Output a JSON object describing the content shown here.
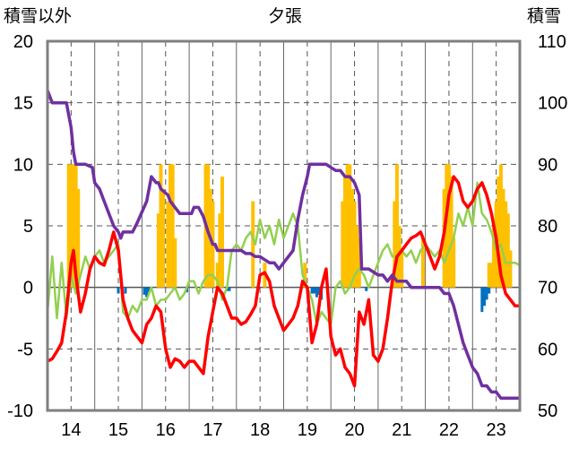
{
  "chart_data": {
    "type": "line+bar",
    "title": "夕張",
    "ylabel_left": "積雪以外",
    "ylabel_right": "積雪",
    "ylim_left": [
      -10,
      20
    ],
    "ylim_right": [
      50,
      110
    ],
    "yticks_left": [
      "20",
      "15",
      "10",
      "5",
      "0",
      "-5",
      "-10"
    ],
    "yticks_right": [
      "110",
      "100",
      "90",
      "80",
      "70",
      "60",
      "50"
    ],
    "xlim": [
      13.5,
      23.5
    ],
    "xticks": [
      "14",
      "15",
      "16",
      "17",
      "18",
      "19",
      "20",
      "21",
      "22",
      "23"
    ],
    "grid": "dashed",
    "colors": {
      "red_line": "#ff0000",
      "green_line": "#92d050",
      "purple_line": "#7030a0",
      "orange_bars": "#ffc000",
      "blue_bars": "#0070c0"
    },
    "red_series": {
      "axis": "left",
      "x": [
        13.5,
        13.6,
        13.7,
        13.8,
        13.9,
        14.0,
        14.05,
        14.1,
        14.2,
        14.3,
        14.4,
        14.5,
        14.6,
        14.7,
        14.8,
        14.9,
        15.0,
        15.1,
        15.2,
        15.3,
        15.4,
        15.5,
        15.6,
        15.7,
        15.8,
        15.9,
        16.0,
        16.1,
        16.2,
        16.3,
        16.4,
        16.5,
        16.6,
        16.7,
        16.8,
        16.9,
        17.0,
        17.1,
        17.2,
        17.3,
        17.4,
        17.5,
        17.6,
        17.7,
        17.8,
        17.9,
        18.0,
        18.1,
        18.2,
        18.3,
        18.4,
        18.5,
        18.6,
        18.7,
        18.8,
        18.9,
        19.0,
        19.1,
        19.2,
        19.3,
        19.4,
        19.5,
        19.6,
        19.7,
        19.8,
        19.9,
        20.0,
        20.1,
        20.2,
        20.3,
        20.4,
        20.5,
        20.6,
        20.7,
        20.8,
        20.9,
        21.0,
        21.1,
        21.2,
        21.3,
        21.4,
        21.5,
        21.6,
        21.7,
        21.8,
        21.9,
        22.0,
        22.1,
        22.2,
        22.3,
        22.4,
        22.5,
        22.6,
        22.7,
        22.8,
        22.9,
        23.0,
        23.1,
        23.2,
        23.3,
        23.4,
        23.5
      ],
      "values": [
        -6,
        -5.8,
        -5.2,
        -4.5,
        -2,
        2,
        3,
        1,
        -2,
        -0.5,
        1.5,
        2.5,
        2,
        1.8,
        3,
        4.5,
        3,
        -1,
        -2.5,
        -3.5,
        -4,
        -4.5,
        -3,
        -2.5,
        -1.5,
        -2,
        -5,
        -6.5,
        -5.8,
        -6,
        -6.5,
        -6,
        -6,
        -6.5,
        -7,
        -4,
        -2,
        0,
        -0.5,
        -1.5,
        -2.5,
        -2.5,
        -3,
        -2.8,
        -2.2,
        -1.5,
        1,
        1.2,
        0.5,
        -1.5,
        -2.5,
        -3.5,
        -3,
        -2.5,
        -1.5,
        0.5,
        0,
        -4.5,
        -3,
        0,
        1.5,
        -4,
        -5.5,
        -5,
        -6.5,
        -7,
        -8,
        -2,
        -3,
        -1,
        -5.5,
        -6,
        -5,
        -2.5,
        0.5,
        2.5,
        3,
        3.5,
        4,
        4.2,
        4.5,
        3.5,
        2.5,
        1.5,
        2.5,
        4.5,
        7.5,
        9,
        8.5,
        7,
        6.5,
        7,
        8,
        8.5,
        7.5,
        6,
        4,
        1,
        -0.5,
        -1,
        -1.5,
        -1.5
      ]
    },
    "green_series": {
      "axis": "left",
      "x": [
        13.5,
        13.6,
        13.7,
        13.8,
        13.9,
        14.0,
        14.1,
        14.2,
        14.3,
        14.4,
        14.5,
        14.6,
        14.7,
        14.8,
        14.9,
        15.0,
        15.1,
        15.2,
        15.3,
        15.4,
        15.5,
        15.6,
        15.7,
        15.8,
        15.9,
        16.0,
        16.1,
        16.2,
        16.3,
        16.4,
        16.5,
        16.6,
        16.7,
        16.8,
        16.9,
        17.0,
        17.1,
        17.2,
        17.3,
        17.4,
        17.5,
        17.6,
        17.7,
        17.8,
        17.9,
        18.0,
        18.1,
        18.2,
        18.3,
        18.4,
        18.5,
        18.6,
        18.7,
        18.8,
        18.9,
        19.0,
        19.1,
        19.2,
        19.3,
        19.4,
        19.5,
        19.6,
        19.7,
        19.8,
        19.9,
        20.0,
        20.1,
        20.2,
        20.3,
        20.4,
        20.5,
        20.6,
        20.7,
        20.8,
        20.9,
        21.0,
        21.1,
        21.2,
        21.3,
        21.4,
        21.5,
        21.6,
        21.7,
        21.8,
        21.9,
        22.0,
        22.1,
        22.2,
        22.3,
        22.4,
        22.5,
        22.6,
        22.7,
        22.8,
        22.9,
        23.0,
        23.1,
        23.2,
        23.3,
        23.4,
        23.5
      ],
      "values": [
        -2,
        2.5,
        -2.5,
        2,
        -2.5,
        1,
        -0.5,
        1,
        2.5,
        1.5,
        2.5,
        3,
        2,
        2.5,
        3,
        3.5,
        -2,
        -2.5,
        -1.5,
        -2,
        -1,
        -1,
        0,
        -1.5,
        -1,
        -1,
        -0.5,
        0,
        -1,
        -0.5,
        0.5,
        0.5,
        -0.5,
        0.5,
        1,
        1,
        0.5,
        -1,
        0,
        3,
        3.5,
        3,
        4,
        4.5,
        3.5,
        5.5,
        4,
        5,
        3.5,
        5.5,
        4,
        5,
        6,
        5,
        1,
        0,
        -1,
        -3,
        -2,
        -2.5,
        -3,
        0,
        0.5,
        -0.5,
        0,
        1,
        1.5,
        1,
        0,
        1,
        2,
        3,
        3.5,
        2.5,
        2.5,
        3,
        2.5,
        3,
        2,
        3,
        3.5,
        3,
        2.5,
        3,
        2,
        3,
        4,
        6,
        5,
        6.5,
        5,
        8.5,
        6,
        5.5,
        4.5,
        3,
        3.5,
        2,
        2,
        2,
        1.8
      ]
    },
    "purple_series": {
      "axis": "right",
      "x": [
        13.5,
        13.55,
        13.6,
        13.7,
        13.8,
        13.9,
        14.0,
        14.05,
        14.1,
        14.3,
        14.45,
        14.5,
        14.6,
        14.7,
        14.8,
        14.9,
        15.0,
        15.05,
        15.1,
        15.2,
        15.3,
        15.4,
        15.6,
        15.7,
        15.8,
        15.85,
        15.9,
        16.05,
        16.1,
        16.2,
        16.3,
        16.4,
        16.5,
        16.55,
        16.6,
        16.7,
        16.8,
        16.9,
        17.0,
        17.05,
        17.1,
        17.3,
        17.4,
        17.5,
        17.6,
        17.7,
        17.8,
        17.9,
        18.0,
        18.1,
        18.2,
        18.3,
        18.4,
        18.5,
        18.6,
        18.7,
        18.8,
        18.9,
        19.0,
        19.05,
        19.1,
        19.3,
        19.4,
        19.5,
        19.6,
        19.7,
        19.8,
        19.9,
        20.0,
        20.05,
        20.1,
        20.15,
        20.2,
        20.3,
        20.5,
        20.6,
        20.7,
        20.8,
        20.9,
        21.0,
        21.1,
        21.2,
        21.3,
        21.4,
        21.5,
        21.6,
        21.7,
        21.8,
        21.9,
        22.0,
        22.1,
        22.2,
        22.3,
        22.4,
        22.5,
        22.6,
        22.7,
        22.8,
        22.9,
        23.0,
        23.1,
        23.2,
        23.3,
        23.4,
        23.5
      ],
      "values": [
        102,
        101,
        100,
        100,
        100,
        100,
        96,
        92,
        90,
        90,
        89.5,
        87,
        86,
        84,
        82,
        80,
        79,
        78,
        79,
        79,
        79,
        80.5,
        84,
        88,
        87,
        87,
        86,
        85,
        84,
        83,
        82,
        82,
        82,
        82,
        83,
        83,
        81.5,
        79,
        77,
        77,
        76,
        76,
        76,
        76,
        76,
        75.5,
        75.5,
        75,
        75,
        74.5,
        74,
        74,
        73,
        74,
        75,
        76,
        81,
        85,
        88,
        90,
        90,
        90,
        90,
        89.5,
        89,
        89,
        88,
        88,
        87,
        86,
        85,
        73,
        73,
        73,
        72,
        72,
        71,
        72,
        71,
        71,
        71,
        70,
        70,
        70,
        70,
        70,
        70,
        70,
        69,
        69,
        67,
        64,
        61,
        59,
        57,
        56,
        54,
        54,
        53,
        53,
        52,
        52,
        52,
        52,
        52
      ]
    },
    "orange_bars": {
      "axis": "left",
      "x": [
        13.95,
        14.0,
        14.05,
        14.1,
        14.15,
        15.85,
        15.9,
        15.95,
        16.05,
        16.1,
        16.15,
        16.2,
        16.85,
        16.9,
        16.95,
        17.0,
        17.1,
        17.15,
        17.2,
        17.85,
        18.1,
        18.95,
        19.75,
        19.8,
        19.85,
        19.9,
        19.95,
        20.0,
        20.05,
        20.1,
        20.85,
        20.9,
        20.95,
        21.0,
        21.45,
        21.9,
        21.95,
        22.0,
        22.05,
        22.1,
        22.85,
        22.9,
        22.95,
        23.0,
        23.05,
        23.1,
        23.15,
        23.2,
        23.25,
        23.3
      ],
      "values": [
        10,
        10,
        10,
        10,
        8,
        6,
        10,
        8,
        7,
        10,
        10,
        4,
        10,
        10,
        8,
        7,
        2,
        6,
        9,
        7,
        2,
        2,
        7,
        9,
        10,
        10,
        8,
        7,
        5,
        4,
        7,
        10,
        5,
        3,
        4,
        8,
        10,
        10,
        9,
        4,
        2,
        2,
        5,
        7,
        9,
        10,
        8,
        7,
        6,
        3
      ]
    },
    "blue_bars": {
      "axis": "left",
      "x": [
        15.0,
        15.15,
        15.55,
        15.6,
        15.65,
        16.45,
        17.3,
        17.35,
        19.1,
        19.15,
        19.2,
        19.25,
        19.3,
        20.25,
        22.7,
        22.75,
        22.8,
        22.85
      ],
      "values": [
        -0.5,
        -0.5,
        -0.6,
        -0.8,
        -0.4,
        -0.4,
        -0.3,
        -0.3,
        -0.5,
        -0.5,
        -0.8,
        -0.6,
        -1,
        -0.3,
        -2,
        -1.5,
        -1,
        -0.5
      ]
    }
  }
}
